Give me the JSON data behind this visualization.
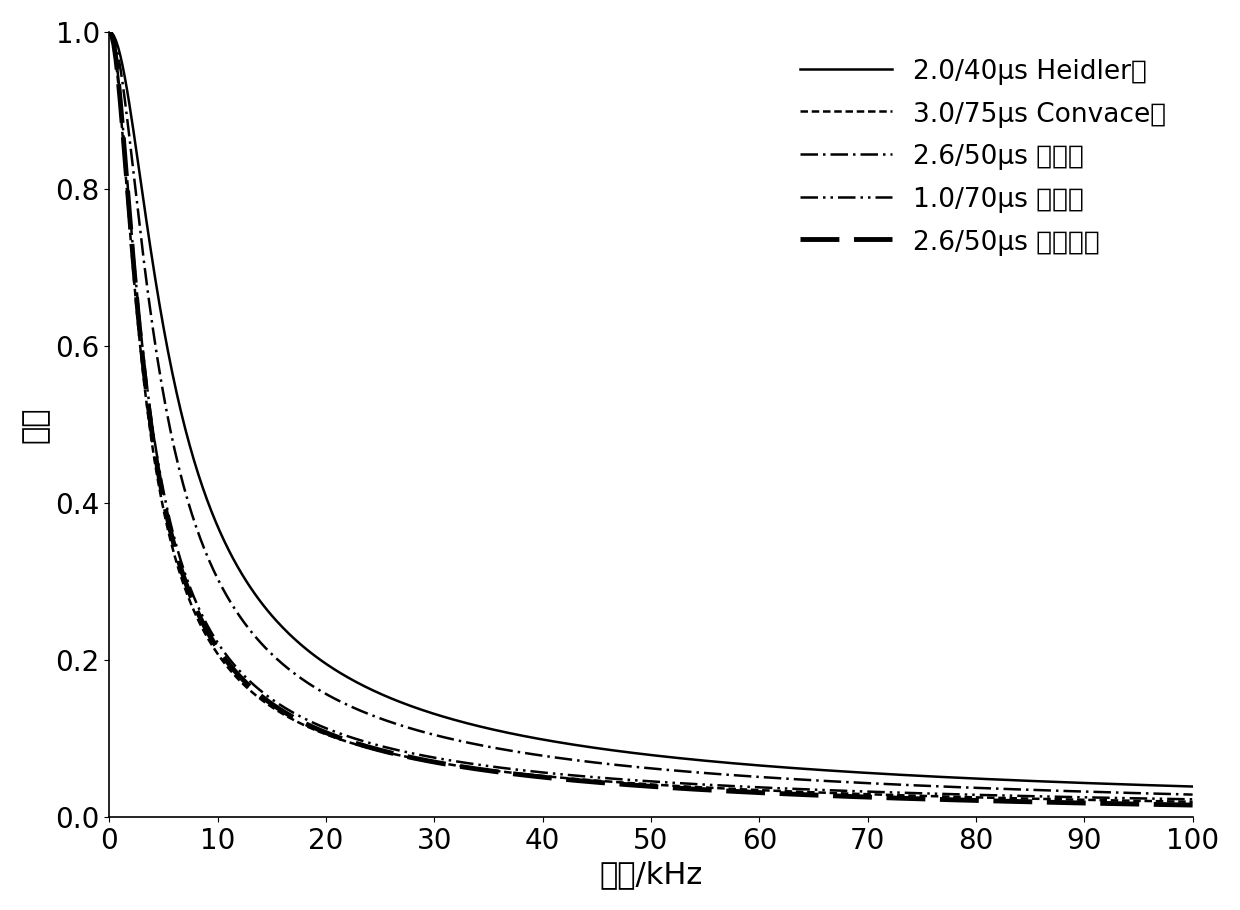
{
  "xlabel": "频率/kHz",
  "ylabel": "振幅",
  "xlim": [
    0,
    100
  ],
  "ylim": [
    0.0,
    1.05
  ],
  "ylim_display": [
    0.0,
    1.0
  ],
  "xticks": [
    0,
    10,
    20,
    30,
    40,
    50,
    60,
    70,
    80,
    90,
    100
  ],
  "yticks": [
    0.0,
    0.2,
    0.4,
    0.6,
    0.8,
    1.0
  ],
  "legend": [
    {
      "label": "2.0/40μs Heidler波"
    },
    {
      "label": "3.0/75μs Convace波"
    },
    {
      "label": "2.6/50μs 斜角波"
    },
    {
      "label": "1.0/70μs 斜角波"
    },
    {
      "label": "2.6/50μs 双指数波"
    }
  ],
  "background_color": "#ffffff",
  "font_size_label": 22,
  "font_size_tick": 20,
  "font_size_legend": 19
}
